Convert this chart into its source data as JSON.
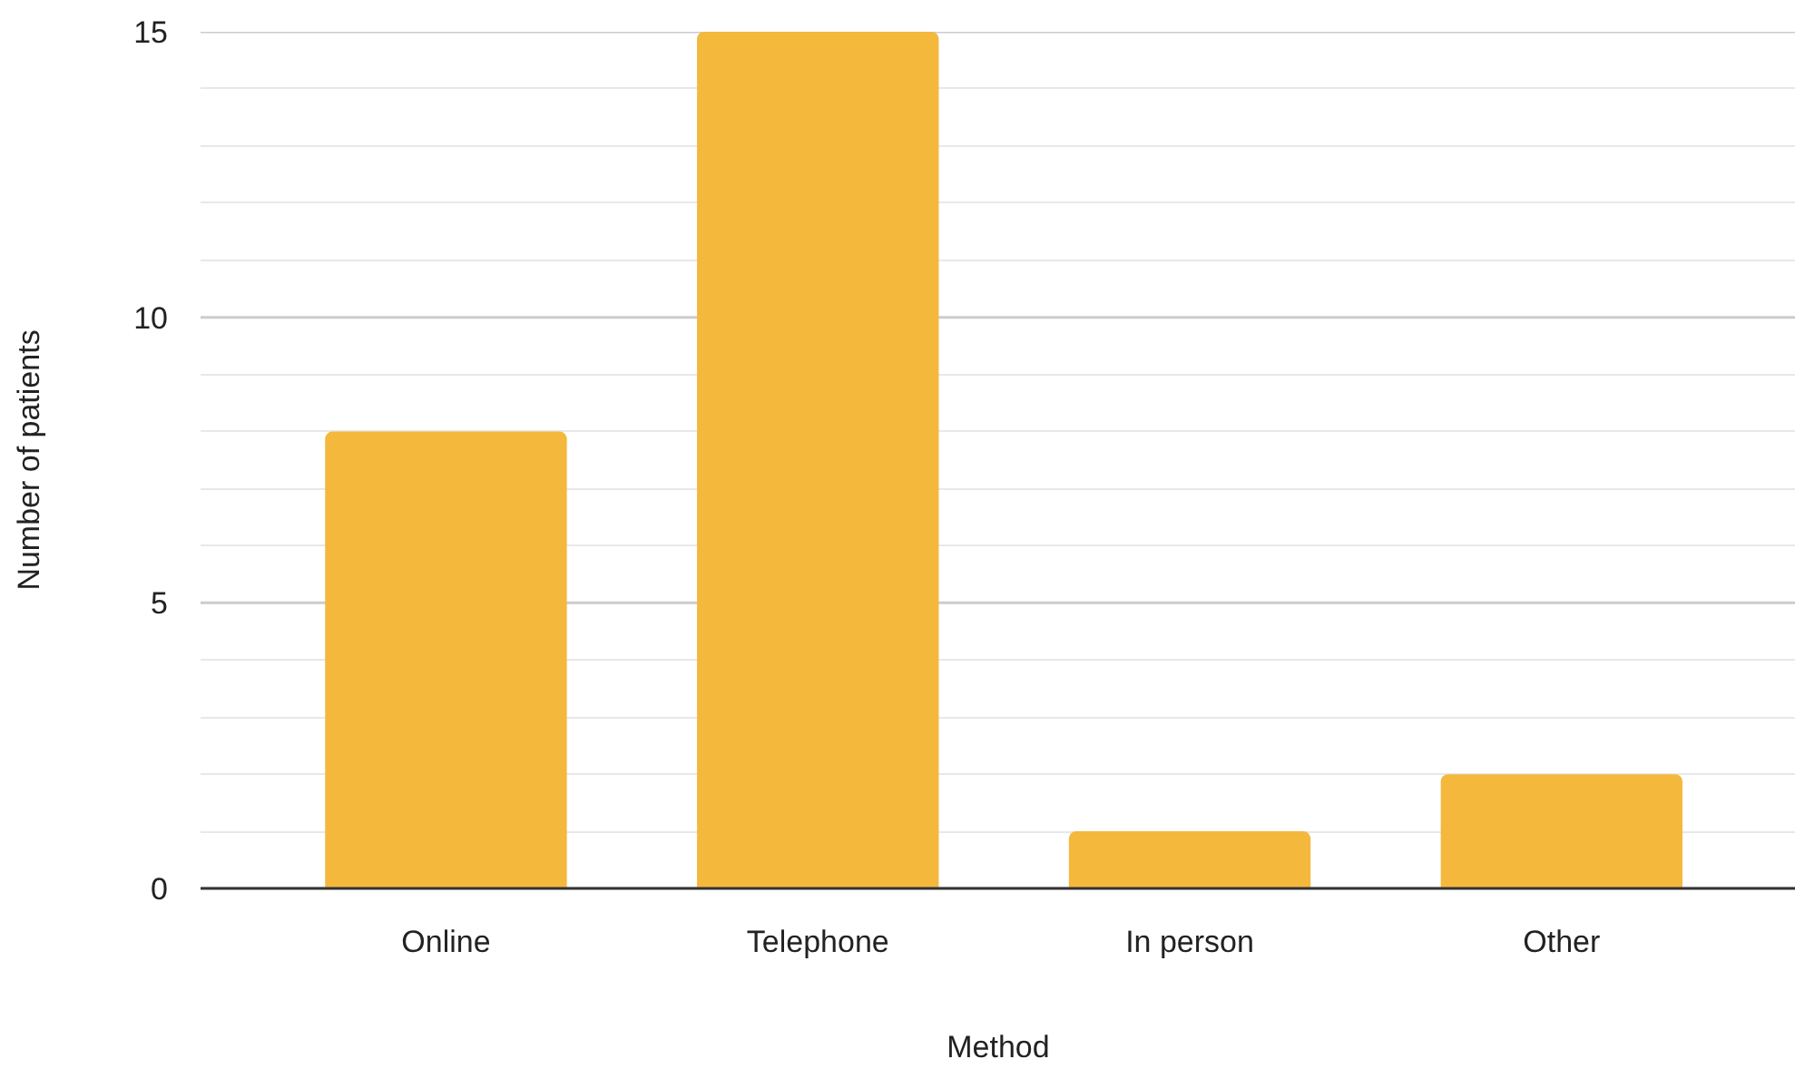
{
  "chart_data": {
    "type": "bar",
    "xlabel": "Method",
    "ylabel": "Number of patients",
    "categories": [
      "Online",
      "Telephone",
      "In person",
      "Other"
    ],
    "values": [
      8,
      15,
      1,
      2
    ],
    "color": "#f4b83d",
    "ylim": [
      0,
      15
    ],
    "yticks": [
      0,
      {
        "value": 1,
        "label": null
      },
      {
        "value": 2,
        "label": null
      },
      {
        "value": 3,
        "label": null
      },
      {
        "value": 4,
        "label": null
      },
      5,
      {
        "value": 6,
        "label": null
      },
      {
        "value": 7,
        "label": null
      },
      {
        "value": 8,
        "label": null
      },
      {
        "value": 9,
        "label": null
      },
      10,
      {
        "value": 11,
        "label": null
      },
      {
        "value": 12,
        "label": null
      },
      {
        "value": 13,
        "label": null
      },
      {
        "value": 14,
        "label": null
      },
      15
    ],
    "grid": "y"
  }
}
